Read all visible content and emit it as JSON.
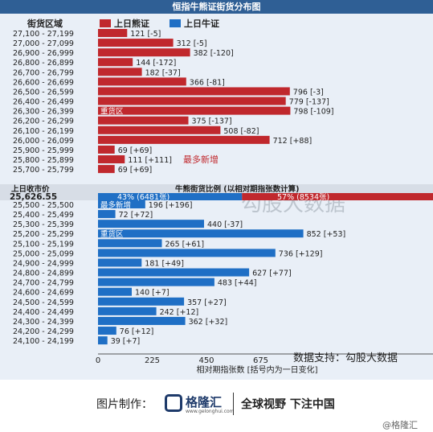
{
  "header": {
    "title": "恒指牛熊证街货分布图"
  },
  "legend": {
    "zone_label": "街货区域",
    "bear_label": "上日熊证",
    "bull_label": "上日牛证"
  },
  "colors": {
    "bear": "#c0282d",
    "bull": "#1f6fc5",
    "header_bg": "#2f5f95",
    "plot_bg": "#e9eff7",
    "annotation": "#c0282d"
  },
  "price_row": {
    "label": "上日收市价",
    "value": "25,626.55",
    "ratio_title": "牛熊街货比例 (以相对期指张数计算)",
    "bull_ratio_text": "43% (6481张)",
    "bear_ratio_text": "57% (8534张)",
    "bull_pct": 43,
    "bear_pct": 57
  },
  "annotations": {
    "bear_new_high": "最多新增",
    "bull_new_high": "最多新增",
    "heavy_bear": "重货区",
    "heavy_bull": "重货区"
  },
  "watermark": "勾股大数据",
  "data_source": "数据支持：勾股大数据",
  "chart_data": {
    "type": "bar",
    "orientation": "horizontal",
    "title": "恒指牛熊证街货分布图",
    "xlabel": "相对期指张数 [括号内为一日变化]",
    "xlim": [
      0,
      900
    ],
    "xticks": [
      "0",
      "225",
      "450",
      "675"
    ],
    "bear": [
      {
        "zone": "27,100 - 27,199",
        "value": 121,
        "label": "121 [-5]"
      },
      {
        "zone": "27,000 - 27,099",
        "value": 312,
        "label": "312 [-5]"
      },
      {
        "zone": "26,900 - 26,999",
        "value": 382,
        "label": "382 [-120]"
      },
      {
        "zone": "26,800 - 26,899",
        "value": 144,
        "label": "144 [-172]"
      },
      {
        "zone": "26,700 - 26,799",
        "value": 182,
        "label": "182 [-37]"
      },
      {
        "zone": "26,600 - 26,699",
        "value": 366,
        "label": "366 [-81]"
      },
      {
        "zone": "26,500 - 26,599",
        "value": 796,
        "label": "796 [-3]"
      },
      {
        "zone": "26,400 - 26,499",
        "value": 779,
        "label": "779 [-137]"
      },
      {
        "zone": "26,300 - 26,399",
        "value": 798,
        "label": "798 [-109]"
      },
      {
        "zone": "26,200 - 26,299",
        "value": 375,
        "label": "375 [-137]"
      },
      {
        "zone": "26,100 - 26,199",
        "value": 508,
        "label": "508 [-82]"
      },
      {
        "zone": "26,000 - 26,099",
        "value": 712,
        "label": "712 [+88]"
      },
      {
        "zone": "25,900 - 25,999",
        "value": 69,
        "label": "69 [+69]"
      },
      {
        "zone": "25,800 - 25,899",
        "value": 111,
        "label": "111 [+111]"
      },
      {
        "zone": "25,700 - 25,799",
        "value": 69,
        "label": "69 [+69]"
      }
    ],
    "bull": [
      {
        "zone": "25,500 - 25,500",
        "value": 196,
        "label": "196 [+196]"
      },
      {
        "zone": "25,400 - 25,499",
        "value": 72,
        "label": "72 [+72]"
      },
      {
        "zone": "25,300 - 25,399",
        "value": 440,
        "label": "440 [-37]"
      },
      {
        "zone": "25,200 - 25,299",
        "value": 852,
        "label": "852 [+53]"
      },
      {
        "zone": "25,100 - 25,199",
        "value": 265,
        "label": "265 [+61]"
      },
      {
        "zone": "25,000 - 25,099",
        "value": 736,
        "label": "736 [+129]"
      },
      {
        "zone": "24,900 - 24,999",
        "value": 181,
        "label": "181 [+49]"
      },
      {
        "zone": "24,800 - 24,899",
        "value": 627,
        "label": "627 [+77]"
      },
      {
        "zone": "24,700 - 24,799",
        "value": 483,
        "label": "483 [+44]"
      },
      {
        "zone": "24,600 - 24,699",
        "value": 140,
        "label": "140 [+7]"
      },
      {
        "zone": "24,500 - 24,599",
        "value": 357,
        "label": "357 [+27]"
      },
      {
        "zone": "24,400 - 24,499",
        "value": 242,
        "label": "242 [+12]"
      },
      {
        "zone": "24,300 - 24,399",
        "value": 362,
        "label": "362 [+32]"
      },
      {
        "zone": "24,200 - 24,299",
        "value": 76,
        "label": "76 [+12]"
      },
      {
        "zone": "24,100 - 24,199",
        "value": 39,
        "label": "39 [+7]"
      }
    ]
  },
  "footer": {
    "made_by": "图片制作：",
    "brand": "格隆汇",
    "brand_url": "www.gelonghui.com",
    "slogan": "全球视野 下注中国",
    "credit": "@格隆汇"
  }
}
